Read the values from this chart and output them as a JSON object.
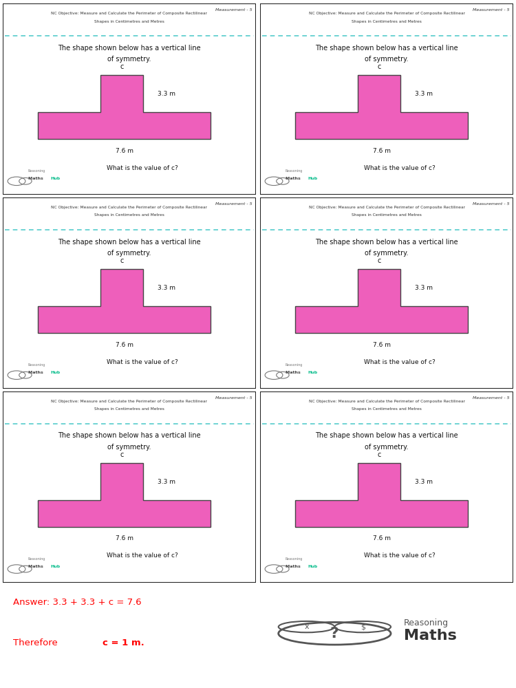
{
  "title_line1": "NC Objective: Measure and Calculate the Perimeter of Composite Rectilinear",
  "title_line2": "Shapes in Centimetres and Metres",
  "measurement_label": "Measurement - 5",
  "question_text_line1": "The shape shown below has a vertical line",
  "question_text_line2": "of symmetry.",
  "label_c": "c",
  "label_33": "3.3 m",
  "label_76": "7.6 m",
  "question_bottom": "What is the value of c?",
  "answer_line1": "Answer: 3.3 + 3.3 + c = 7.6",
  "answer_line2_plain": "Therefore ",
  "answer_line2_bold": "c = 1 m.",
  "shape_fill": "#EE5FBB",
  "shape_outline": "#444444",
  "dashed_color": "#55CCCC",
  "border_color": "#222222",
  "answer_color": "#FF0000",
  "bg_color": "#FFFFFF",
  "header_bg": "#FFFFFF"
}
